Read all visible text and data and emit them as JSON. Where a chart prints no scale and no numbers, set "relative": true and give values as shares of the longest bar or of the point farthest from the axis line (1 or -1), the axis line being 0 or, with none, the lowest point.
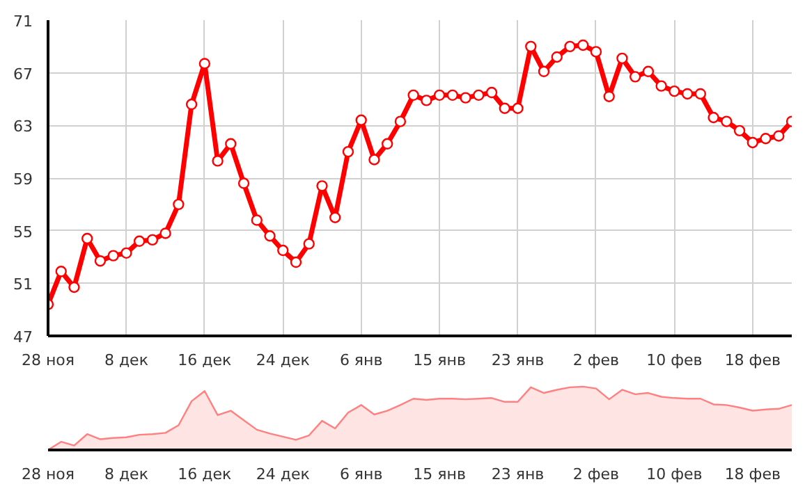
{
  "chart_data": [
    {
      "type": "line",
      "categories": [
        "28 ноя",
        null,
        null,
        null,
        null,
        null,
        "8 дек",
        null,
        null,
        null,
        null,
        null,
        "16 дек",
        null,
        null,
        null,
        null,
        null,
        "24 дек",
        null,
        null,
        null,
        null,
        null,
        "6 янв",
        null,
        null,
        null,
        null,
        null,
        "15 янв",
        null,
        null,
        null,
        null,
        null,
        "23 янв",
        null,
        null,
        null,
        null,
        null,
        "2 фев",
        null,
        null,
        null,
        null,
        null,
        "10 фев",
        null,
        null,
        null,
        null,
        null,
        "18 фев",
        null,
        null,
        null
      ],
      "series": [
        {
          "color": "#ff0000",
          "values": [
            49.4,
            51.9,
            50.7,
            54.4,
            52.7,
            53.1,
            53.3,
            54.2,
            54.3,
            54.8,
            57.0,
            64.6,
            67.7,
            60.3,
            61.6,
            58.6,
            55.8,
            54.6,
            53.5,
            52.6,
            54.0,
            58.4,
            56.0,
            61.0,
            63.4,
            60.4,
            61.6,
            63.3,
            65.3,
            64.9,
            65.3,
            65.3,
            65.1,
            65.3,
            65.5,
            64.3,
            64.3,
            69.0,
            67.1,
            68.2,
            69.0,
            69.1,
            68.6,
            65.2,
            68.1,
            66.7,
            67.1,
            66.0,
            65.6,
            65.4,
            65.4,
            63.6,
            63.3,
            62.6,
            61.7,
            62.0,
            62.2,
            63.3
          ]
        }
      ],
      "ylim": [
        47,
        71
      ],
      "yticks": [
        47,
        51,
        55,
        59,
        63,
        67,
        71
      ],
      "grid": true,
      "marker": "circle",
      "line_style": "solid"
    },
    {
      "type": "area",
      "relative": true,
      "categories": [
        "28 ноя",
        null,
        null,
        null,
        null,
        null,
        "8 дек",
        null,
        null,
        null,
        null,
        null,
        "16 дек",
        null,
        null,
        null,
        null,
        null,
        "24 дек",
        null,
        null,
        null,
        null,
        null,
        "6 янв",
        null,
        null,
        null,
        null,
        null,
        "15 янв",
        null,
        null,
        null,
        null,
        null,
        "23 янв",
        null,
        null,
        null,
        null,
        null,
        "2 фев",
        null,
        null,
        null,
        null,
        null,
        "10 фев",
        null,
        null,
        null,
        null,
        null,
        "18 фев",
        null,
        null,
        null
      ],
      "series": [
        {
          "color": "#ff8080",
          "values": [
            0,
            0.13,
            0.07,
            0.25,
            0.17,
            0.19,
            0.2,
            0.24,
            0.25,
            0.27,
            0.39,
            0.77,
            0.93,
            0.55,
            0.62,
            0.47,
            0.32,
            0.26,
            0.21,
            0.16,
            0.23,
            0.46,
            0.34,
            0.59,
            0.71,
            0.56,
            0.62,
            0.71,
            0.81,
            0.79,
            0.81,
            0.81,
            0.8,
            0.81,
            0.82,
            0.76,
            0.76,
            0.99,
            0.9,
            0.95,
            0.99,
            1,
            0.97,
            0.8,
            0.95,
            0.88,
            0.9,
            0.84,
            0.82,
            0.81,
            0.81,
            0.72,
            0.71,
            0.67,
            0.62,
            0.64,
            0.65,
            0.71
          ]
        }
      ],
      "grid": false
    }
  ]
}
